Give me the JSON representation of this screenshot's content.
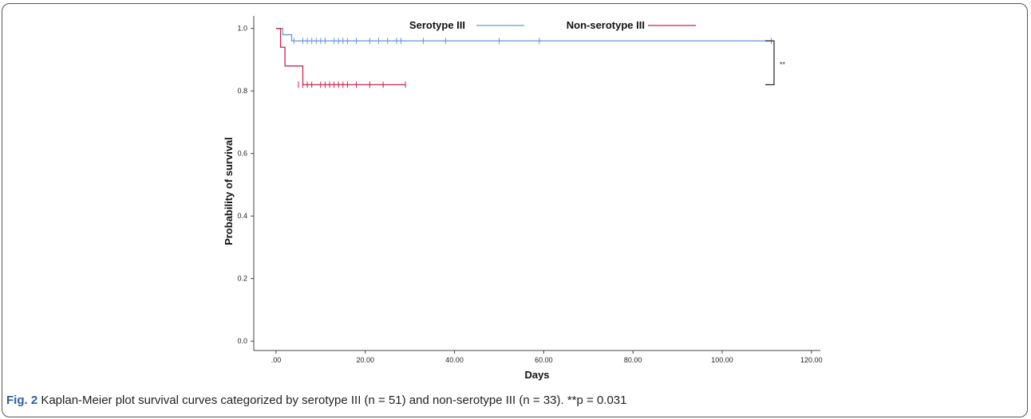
{
  "chart_data": {
    "type": "line",
    "xlabel": "Days",
    "ylabel": "Probability of survival",
    "xlim": [
      -5,
      122
    ],
    "ylim": [
      -0.03,
      1.04
    ],
    "x_ticks": [
      0,
      20,
      40,
      60,
      80,
      100,
      120
    ],
    "x_tick_labels": [
      ".00",
      "20.00",
      "40.00",
      "60.00",
      "80.00",
      "100.00",
      "120.00"
    ],
    "y_ticks": [
      0.0,
      0.2,
      0.4,
      0.6,
      0.8,
      1.0
    ],
    "y_tick_labels": [
      "0.0",
      "0.2",
      "0.4",
      "0.6",
      "0.8",
      "1.0"
    ],
    "legend_position": "top",
    "series": [
      {
        "name": "Serotype III",
        "color": "#6b96d6",
        "steps": [
          [
            0,
            1.0
          ],
          [
            1.5,
            0.98
          ],
          [
            3.5,
            0.96
          ],
          [
            111,
            0.96
          ]
        ],
        "censored_x": [
          4,
          6,
          7,
          8,
          9,
          10,
          11,
          13,
          14,
          15,
          16,
          18,
          21,
          23,
          25,
          27,
          28,
          33,
          38,
          50,
          59,
          111
        ],
        "censored_y": 0.96
      },
      {
        "name": "Non-serotype III",
        "color": "#c8234f",
        "steps": [
          [
            0,
            1.0
          ],
          [
            1,
            0.94
          ],
          [
            2,
            0.88
          ],
          [
            6,
            0.82
          ],
          [
            29,
            0.82
          ]
        ],
        "censored_x": [
          5,
          6,
          7,
          8,
          10,
          11,
          12,
          13,
          14,
          15,
          16,
          18,
          21,
          24,
          29
        ],
        "censored_y": 0.82
      }
    ],
    "annotation": "**"
  },
  "caption": {
    "label": "Fig. 2",
    "text": " Kaplan-Meier plot survival curves categorized by serotype III (n = 51) and non-serotype III (n = 33). **p = 0.031"
  }
}
